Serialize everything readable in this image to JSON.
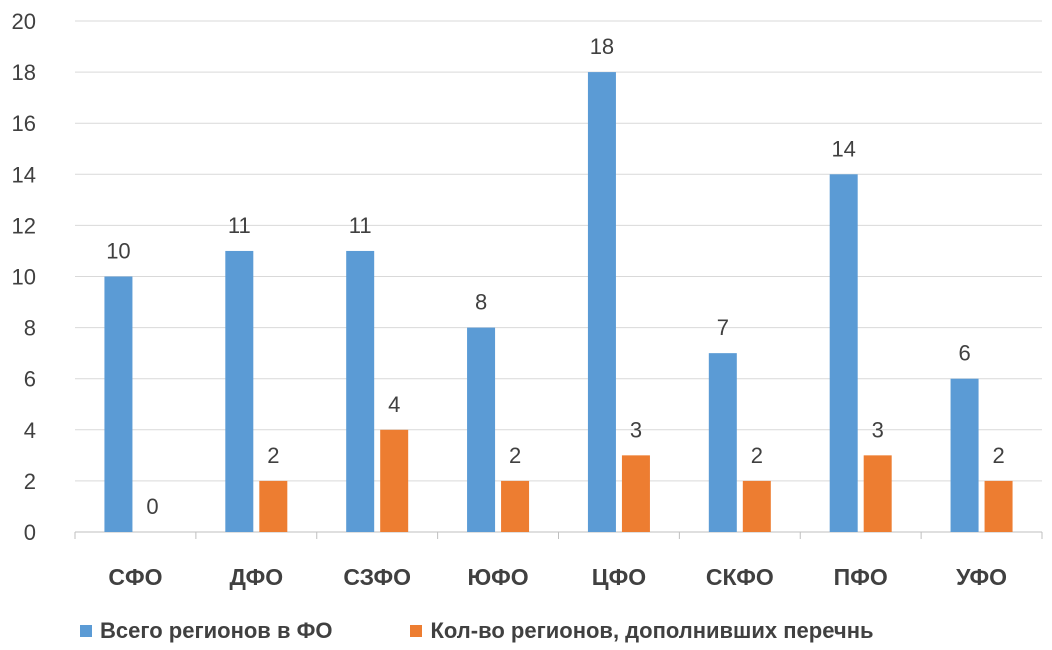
{
  "chart_data": {
    "type": "bar",
    "categories": [
      "СФО",
      "ДФО",
      "СЗФО",
      "ЮФО",
      "ЦФО",
      "СКФО",
      "ПФО",
      "УФО"
    ],
    "series": [
      {
        "name": "Всего регионов в ФО",
        "values": [
          10,
          11,
          11,
          8,
          18,
          7,
          14,
          6
        ],
        "color": "#5B9BD5"
      },
      {
        "name": "Кол-во регионов, дополнивших перечнь",
        "values": [
          0,
          2,
          4,
          2,
          3,
          2,
          3,
          2
        ],
        "color": "#ED7D31"
      }
    ],
    "ylim": [
      0,
      20
    ],
    "yticks": [
      0,
      2,
      4,
      6,
      8,
      10,
      12,
      14,
      16,
      18,
      20
    ],
    "grid": true,
    "legend": "bottom"
  }
}
